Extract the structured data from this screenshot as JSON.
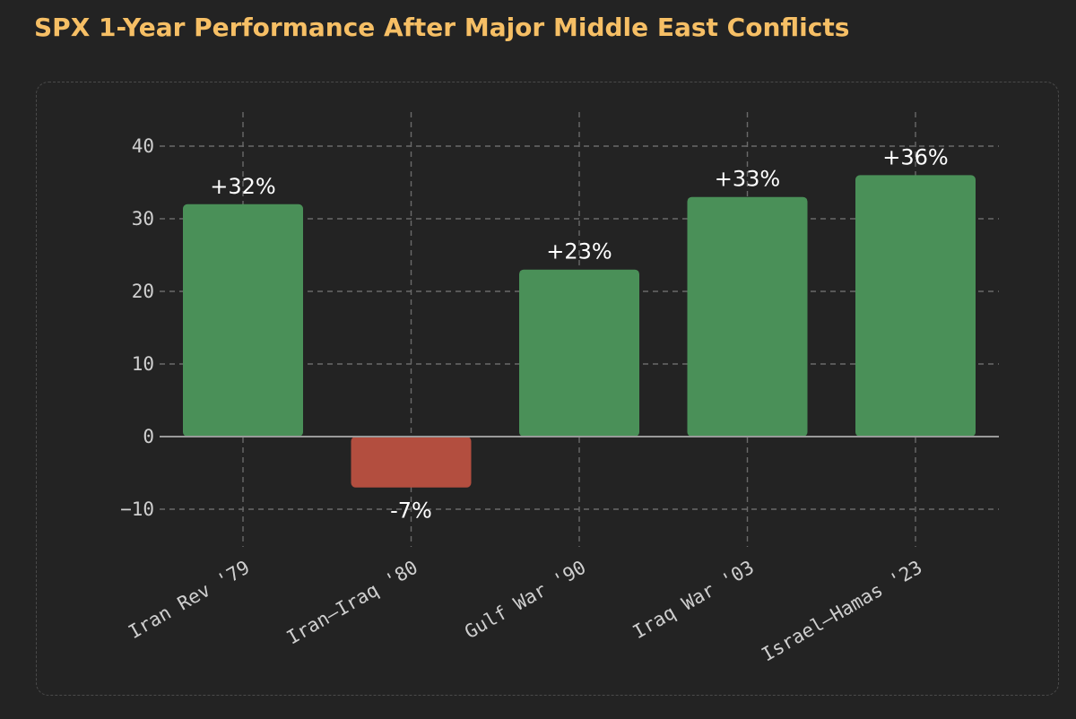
{
  "title": "SPX 1-Year Performance After Major Middle East Conflicts",
  "colors": {
    "title": "#f6bf65",
    "positive": "#4a9058",
    "negative": "#b34e3f",
    "grid": "#6a6a6a",
    "zero_line": "#9a9a9a",
    "tick_text": "#cfcfcf",
    "label_text": "#ffffff",
    "background": "#232323"
  },
  "chart_data": {
    "type": "bar",
    "title": "SPX 1-Year Performance After Major Middle East Conflicts",
    "categories": [
      "Iran Rev '79",
      "Iran–Iraq '80",
      "Gulf War '90",
      "Iraq War '03",
      "Israel–Hamas '23"
    ],
    "values": [
      32,
      -7,
      23,
      33,
      36
    ],
    "data_labels": [
      "+32%",
      "-7%",
      "+23%",
      "+33%",
      "+36%"
    ],
    "xlabel": "",
    "ylabel": "",
    "ylim": [
      -10,
      40
    ],
    "yticks": [
      40,
      30,
      20,
      10,
      0,
      -10
    ],
    "ytick_labels": [
      "40",
      "30",
      "20",
      "10",
      "0",
      "−10"
    ],
    "grid": true,
    "grid_style": "dashed",
    "legend": "none"
  }
}
